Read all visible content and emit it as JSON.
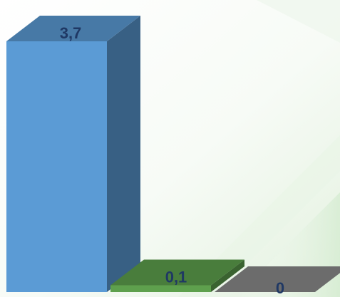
{
  "chart_data": {
    "type": "bar",
    "style": "3d",
    "categories": [
      "",
      "",
      ""
    ],
    "values": [
      3.7,
      0.1,
      0
    ],
    "data_labels": [
      "3,7",
      "0,1",
      "0"
    ],
    "colors": [
      "#5b9bd5",
      "#5ea04d",
      "#8a8a8a"
    ],
    "label_color": "#1f3864",
    "title": "",
    "xlabel": "",
    "ylabel": "",
    "ylim": [
      0,
      3.7
    ],
    "grid": false,
    "legend": "none"
  }
}
